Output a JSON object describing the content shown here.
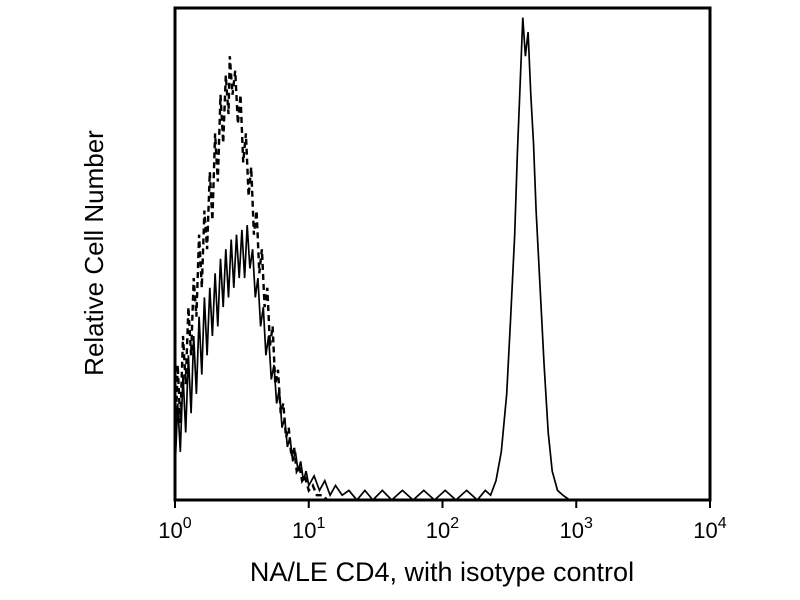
{
  "figure": {
    "background": "#ffffff",
    "frame_color": "#000000",
    "line_color": "#000000"
  },
  "chart_data": {
    "type": "line",
    "subtype": "flow-cytometry-histogram-overlay",
    "title": "",
    "xlabel": "NA/LE CD4, with isotype control",
    "ylabel": "Relative Cell Number",
    "x_scale": "log10",
    "xlim_log10": [
      0,
      4
    ],
    "ylim": [
      0,
      1.02
    ],
    "grid": false,
    "legend": "none",
    "x_ticks": [
      {
        "base": "10",
        "exponent": "0",
        "value": 1
      },
      {
        "base": "10",
        "exponent": "1",
        "value": 10
      },
      {
        "base": "10",
        "exponent": "2",
        "value": 100
      },
      {
        "base": "10",
        "exponent": "3",
        "value": 1000
      },
      {
        "base": "10",
        "exponent": "4",
        "value": 10000
      }
    ],
    "series": [
      {
        "name": "isotype control",
        "line_style": "dashed",
        "color": "#000000",
        "peak_log10x": 0.41,
        "peak_rel_height": 0.92,
        "points": [
          [
            0.0,
            0.1
          ],
          [
            0.02,
            0.28
          ],
          [
            0.04,
            0.16
          ],
          [
            0.06,
            0.34
          ],
          [
            0.08,
            0.24
          ],
          [
            0.1,
            0.4
          ],
          [
            0.12,
            0.3
          ],
          [
            0.14,
            0.46
          ],
          [
            0.16,
            0.38
          ],
          [
            0.18,
            0.55
          ],
          [
            0.2,
            0.44
          ],
          [
            0.22,
            0.6
          ],
          [
            0.24,
            0.52
          ],
          [
            0.26,
            0.68
          ],
          [
            0.28,
            0.58
          ],
          [
            0.3,
            0.76
          ],
          [
            0.32,
            0.66
          ],
          [
            0.34,
            0.84
          ],
          [
            0.36,
            0.74
          ],
          [
            0.38,
            0.88
          ],
          [
            0.4,
            0.8
          ],
          [
            0.41,
            0.92
          ],
          [
            0.43,
            0.84
          ],
          [
            0.45,
            0.89
          ],
          [
            0.47,
            0.78
          ],
          [
            0.49,
            0.84
          ],
          [
            0.51,
            0.7
          ],
          [
            0.53,
            0.76
          ],
          [
            0.55,
            0.63
          ],
          [
            0.57,
            0.69
          ],
          [
            0.59,
            0.55
          ],
          [
            0.61,
            0.6
          ],
          [
            0.63,
            0.47
          ],
          [
            0.65,
            0.52
          ],
          [
            0.67,
            0.4
          ],
          [
            0.69,
            0.44
          ],
          [
            0.71,
            0.32
          ],
          [
            0.73,
            0.36
          ],
          [
            0.75,
            0.24
          ],
          [
            0.77,
            0.27
          ],
          [
            0.79,
            0.18
          ],
          [
            0.81,
            0.2
          ],
          [
            0.83,
            0.13
          ],
          [
            0.85,
            0.15
          ],
          [
            0.87,
            0.09
          ],
          [
            0.89,
            0.11
          ],
          [
            0.91,
            0.06
          ],
          [
            0.93,
            0.07
          ],
          [
            0.95,
            0.04
          ],
          [
            0.97,
            0.05
          ],
          [
            1.0,
            0.02
          ],
          [
            1.03,
            0.03
          ],
          [
            1.06,
            0.01
          ],
          [
            1.1,
            0.01
          ],
          [
            1.14,
            0.0
          ]
        ]
      },
      {
        "name": "NA/LE CD4",
        "line_style": "solid",
        "color": "#000000",
        "peak_log10x": 2.6,
        "peak_rel_height": 1.0,
        "points": [
          [
            0.0,
            0.06
          ],
          [
            0.02,
            0.2
          ],
          [
            0.04,
            0.1
          ],
          [
            0.06,
            0.26
          ],
          [
            0.08,
            0.14
          ],
          [
            0.1,
            0.3
          ],
          [
            0.12,
            0.18
          ],
          [
            0.14,
            0.34
          ],
          [
            0.16,
            0.22
          ],
          [
            0.18,
            0.38
          ],
          [
            0.2,
            0.26
          ],
          [
            0.22,
            0.42
          ],
          [
            0.24,
            0.3
          ],
          [
            0.26,
            0.44
          ],
          [
            0.28,
            0.34
          ],
          [
            0.3,
            0.47
          ],
          [
            0.32,
            0.36
          ],
          [
            0.34,
            0.5
          ],
          [
            0.36,
            0.4
          ],
          [
            0.38,
            0.52
          ],
          [
            0.4,
            0.42
          ],
          [
            0.42,
            0.54
          ],
          [
            0.44,
            0.44
          ],
          [
            0.46,
            0.55
          ],
          [
            0.48,
            0.46
          ],
          [
            0.5,
            0.56
          ],
          [
            0.52,
            0.46
          ],
          [
            0.54,
            0.57
          ],
          [
            0.56,
            0.48
          ],
          [
            0.58,
            0.52
          ],
          [
            0.6,
            0.42
          ],
          [
            0.62,
            0.46
          ],
          [
            0.64,
            0.36
          ],
          [
            0.66,
            0.4
          ],
          [
            0.68,
            0.3
          ],
          [
            0.7,
            0.34
          ],
          [
            0.72,
            0.25
          ],
          [
            0.74,
            0.28
          ],
          [
            0.76,
            0.2
          ],
          [
            0.78,
            0.23
          ],
          [
            0.8,
            0.15
          ],
          [
            0.82,
            0.17
          ],
          [
            0.84,
            0.11
          ],
          [
            0.86,
            0.13
          ],
          [
            0.88,
            0.08
          ],
          [
            0.9,
            0.1
          ],
          [
            0.92,
            0.06
          ],
          [
            0.94,
            0.08
          ],
          [
            0.96,
            0.04
          ],
          [
            0.98,
            0.06
          ],
          [
            1.0,
            0.03
          ],
          [
            1.04,
            0.05
          ],
          [
            1.08,
            0.02
          ],
          [
            1.12,
            0.04
          ],
          [
            1.16,
            0.01
          ],
          [
            1.2,
            0.03
          ],
          [
            1.25,
            0.01
          ],
          [
            1.3,
            0.02
          ],
          [
            1.36,
            0.0
          ],
          [
            1.42,
            0.02
          ],
          [
            1.48,
            0.0
          ],
          [
            1.55,
            0.02
          ],
          [
            1.62,
            0.0
          ],
          [
            1.7,
            0.02
          ],
          [
            1.78,
            0.0
          ],
          [
            1.86,
            0.02
          ],
          [
            1.94,
            0.0
          ],
          [
            2.02,
            0.02
          ],
          [
            2.1,
            0.0
          ],
          [
            2.18,
            0.02
          ],
          [
            2.26,
            0.0
          ],
          [
            2.32,
            0.02
          ],
          [
            2.36,
            0.01
          ],
          [
            2.4,
            0.04
          ],
          [
            2.44,
            0.1
          ],
          [
            2.48,
            0.22
          ],
          [
            2.51,
            0.38
          ],
          [
            2.54,
            0.55
          ],
          [
            2.56,
            0.72
          ],
          [
            2.58,
            0.86
          ],
          [
            2.6,
            1.0
          ],
          [
            2.62,
            0.92
          ],
          [
            2.64,
            0.97
          ],
          [
            2.66,
            0.84
          ],
          [
            2.68,
            0.74
          ],
          [
            2.7,
            0.6
          ],
          [
            2.73,
            0.44
          ],
          [
            2.76,
            0.28
          ],
          [
            2.79,
            0.14
          ],
          [
            2.82,
            0.06
          ],
          [
            2.86,
            0.02
          ],
          [
            2.9,
            0.01
          ],
          [
            2.95,
            0.0
          ],
          [
            3.05,
            0.0
          ]
        ]
      }
    ]
  }
}
